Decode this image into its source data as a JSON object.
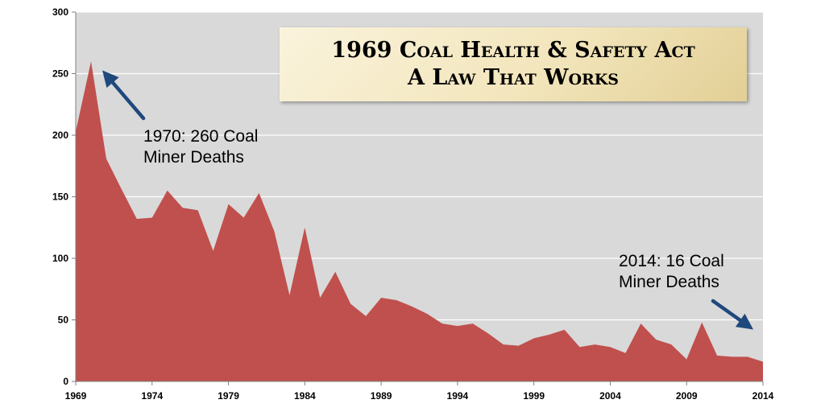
{
  "chart_data": {
    "type": "area",
    "title": [
      "1969 Coal Health & Safety Act",
      "A Law That Works"
    ],
    "xlabel": "",
    "ylabel": "",
    "x": [
      1969,
      1970,
      1971,
      1972,
      1973,
      1974,
      1975,
      1976,
      1977,
      1978,
      1979,
      1980,
      1981,
      1982,
      1983,
      1984,
      1985,
      1986,
      1987,
      1988,
      1989,
      1990,
      1991,
      1992,
      1993,
      1994,
      1995,
      1996,
      1997,
      1998,
      1999,
      2000,
      2001,
      2002,
      2003,
      2004,
      2005,
      2006,
      2007,
      2008,
      2009,
      2010,
      2011,
      2012,
      2013,
      2014
    ],
    "values": [
      203,
      260,
      181,
      156,
      132,
      133,
      155,
      141,
      139,
      106,
      144,
      133,
      153,
      122,
      70,
      125,
      68,
      89,
      63,
      53,
      68,
      66,
      61,
      55,
      47,
      45,
      47,
      39,
      30,
      29,
      35,
      38,
      42,
      28,
      30,
      28,
      23,
      47,
      34,
      30,
      18,
      48,
      21,
      20,
      20,
      16
    ],
    "xlim": [
      1969,
      2014
    ],
    "ylim": [
      0,
      300
    ],
    "xticks": [
      1969,
      1974,
      1979,
      1984,
      1989,
      1994,
      1999,
      2004,
      2009,
      2014
    ],
    "yticks": [
      0,
      50,
      100,
      150,
      200,
      250,
      300
    ],
    "grid": true,
    "legend": "none",
    "colors": {
      "fill": "#c0504d",
      "plot_background": "#d9d9d9",
      "gridline": "#ffffff",
      "arrow": "#1f497d"
    },
    "annotations": [
      {
        "id": "ann-1970",
        "lines": [
          "1970: 260 Coal",
          "Miner Deaths"
        ],
        "x": 1970,
        "y": 260
      },
      {
        "id": "ann-2014",
        "lines": [
          "2014: 16 Coal",
          "Miner Deaths"
        ],
        "x": 2014,
        "y": 16
      }
    ]
  }
}
